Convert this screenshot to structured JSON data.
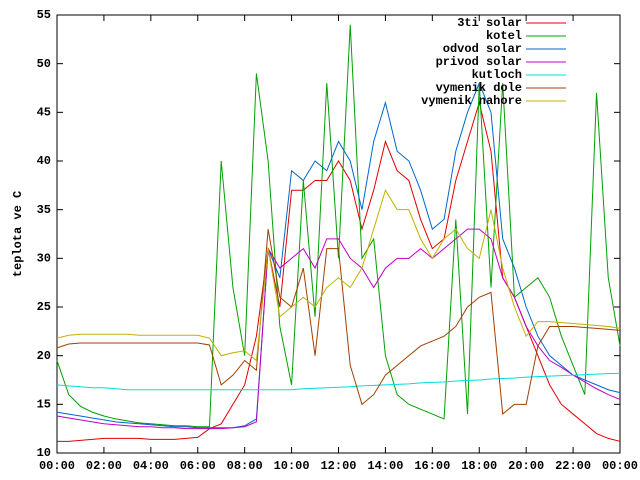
{
  "chart_data": {
    "type": "line",
    "ylabel": "teplota ve C",
    "x": [
      0,
      0.5,
      1,
      1.5,
      2,
      2.5,
      3,
      3.5,
      4,
      4.5,
      5,
      5.5,
      6,
      6.5,
      7,
      7.5,
      8,
      8.5,
      9,
      9.5,
      10,
      10.5,
      11,
      11.5,
      12,
      12.5,
      13,
      13.5,
      14,
      14.5,
      15,
      15.5,
      16,
      16.5,
      17,
      17.5,
      18,
      18.5,
      19,
      19.5,
      20,
      20.5,
      21,
      21.5,
      22,
      22.5,
      23,
      23.5,
      24
    ],
    "xlim": [
      0,
      24
    ],
    "xticks": [
      {
        "value": 0,
        "label": "00:00"
      },
      {
        "value": 2,
        "label": "02:00"
      },
      {
        "value": 4,
        "label": "04:00"
      },
      {
        "value": 6,
        "label": "06:00"
      },
      {
        "value": 8,
        "label": "08:00"
      },
      {
        "value": 10,
        "label": "10:00"
      },
      {
        "value": 12,
        "label": "12:00"
      },
      {
        "value": 14,
        "label": "14:00"
      },
      {
        "value": 16,
        "label": "16:00"
      },
      {
        "value": 18,
        "label": "18:00"
      },
      {
        "value": 20,
        "label": "20:00"
      },
      {
        "value": 22,
        "label": "22:00"
      },
      {
        "value": 24,
        "label": "00:00"
      }
    ],
    "ylim": [
      10,
      55
    ],
    "yticks": [
      10,
      15,
      20,
      25,
      30,
      35,
      40,
      45,
      50,
      55
    ],
    "grid": false,
    "legend": "top-right",
    "series": [
      {
        "name": "3ti solar",
        "color": "#e00000",
        "values": [
          11.2,
          11.2,
          11.3,
          11.4,
          11.5,
          11.5,
          11.5,
          11.5,
          11.4,
          11.4,
          11.4,
          11.5,
          11.6,
          12.5,
          13,
          15,
          17,
          22,
          31,
          25,
          37,
          37,
          38,
          38,
          40,
          38,
          33,
          37,
          42,
          39,
          38,
          34,
          31,
          32,
          38,
          42,
          46,
          41,
          28,
          26,
          23,
          20,
          17,
          15,
          14,
          13,
          12,
          11.5,
          11.2
        ]
      },
      {
        "name": "kotel",
        "color": "#00a000",
        "values": [
          19.5,
          16,
          14.8,
          14.2,
          13.8,
          13.5,
          13.3,
          13.1,
          13,
          12.9,
          12.8,
          12.8,
          12.7,
          12.7,
          40,
          27,
          20,
          49,
          40,
          23,
          17,
          38,
          24,
          48,
          30,
          54,
          30,
          32,
          20,
          16,
          15,
          14.5,
          14,
          13.5,
          34,
          14,
          48,
          27,
          48,
          26,
          27,
          28,
          26,
          22,
          19,
          16,
          47,
          28,
          21
        ]
      },
      {
        "name": "odvod solar",
        "color": "#0066cc",
        "values": [
          14.2,
          14,
          13.8,
          13.6,
          13.4,
          13.2,
          13.1,
          13,
          12.9,
          12.8,
          12.7,
          12.7,
          12.6,
          12.6,
          12.6,
          12.6,
          12.8,
          13.5,
          31,
          28,
          39,
          38,
          40,
          39,
          42,
          40,
          35,
          42,
          46,
          41,
          40,
          37,
          33,
          34,
          41,
          45,
          48,
          45,
          32,
          29,
          25,
          22,
          20,
          19,
          18,
          17.5,
          17,
          16.5,
          16.2
        ]
      },
      {
        "name": "privod solar",
        "color": "#c000c0",
        "values": [
          13.8,
          13.6,
          13.4,
          13.2,
          13,
          12.9,
          12.8,
          12.7,
          12.7,
          12.6,
          12.6,
          12.5,
          12.5,
          12.5,
          12.5,
          12.6,
          12.7,
          13.2,
          31,
          29,
          30,
          31,
          29,
          32,
          32,
          30,
          29,
          27,
          29,
          30,
          30,
          31,
          30,
          31,
          32,
          33,
          33,
          32,
          28,
          26,
          23,
          21,
          19.5,
          18.8,
          18,
          17.3,
          16.6,
          16,
          15.5
        ]
      },
      {
        "name": "kutloch",
        "color": "#00dddd",
        "values": [
          17,
          16.9,
          16.8,
          16.7,
          16.7,
          16.6,
          16.5,
          16.5,
          16.5,
          16.5,
          16.5,
          16.5,
          16.5,
          16.5,
          16.5,
          16.5,
          16.5,
          16.5,
          16.5,
          16.5,
          16.5,
          16.6,
          16.65,
          16.7,
          16.75,
          16.8,
          16.9,
          16.95,
          17,
          17.05,
          17.1,
          17.2,
          17.25,
          17.3,
          17.4,
          17.45,
          17.5,
          17.6,
          17.65,
          17.7,
          17.8,
          17.85,
          17.9,
          17.95,
          18,
          18.05,
          18.1,
          18.15,
          18.2
        ]
      },
      {
        "name": "vymenik dole",
        "color": "#a04000",
        "values": [
          20.8,
          21.2,
          21.3,
          21.3,
          21.3,
          21.3,
          21.3,
          21.3,
          21.3,
          21.3,
          21.3,
          21.3,
          21.3,
          21.1,
          17,
          18,
          19.5,
          18.5,
          33,
          26,
          25,
          29,
          20,
          31,
          31,
          19,
          15,
          16,
          18,
          19,
          20,
          21,
          21.5,
          22,
          23,
          25,
          26,
          26.5,
          14,
          15,
          15,
          21,
          23,
          23,
          23,
          22.9,
          22.8,
          22.7,
          22.6
        ]
      },
      {
        "name": "vymenik nahore",
        "color": "#c0b000",
        "values": [
          21.8,
          22.1,
          22.2,
          22.2,
          22.2,
          22.2,
          22.2,
          22.1,
          22.1,
          22.1,
          22.1,
          22.1,
          22.1,
          21.8,
          20,
          20.3,
          20.5,
          19.5,
          31,
          24,
          25,
          26,
          25,
          27,
          28,
          27,
          29,
          33,
          37,
          35,
          35,
          32,
          30,
          32,
          33,
          31,
          30,
          35,
          29,
          25,
          22,
          23.5,
          23.5,
          23.4,
          23.3,
          23.2,
          23.1,
          23,
          22.8
        ]
      }
    ]
  }
}
